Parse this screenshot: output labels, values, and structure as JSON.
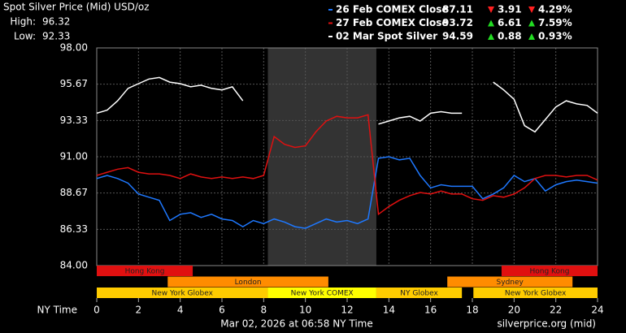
{
  "chart_data": {
    "type": "line",
    "title": "Spot Silver Price (Mid) USD/oz",
    "high_label": "High:",
    "high": 96.32,
    "low_label": "Low:",
    "low": 92.33,
    "xlabel": "NY Time",
    "footer": "Mar 02, 2026 at 06:58 NY Time",
    "source": "silverprice.org (mid)",
    "xlim": [
      0,
      24
    ],
    "xticks": [
      0,
      2,
      4,
      6,
      8,
      10,
      12,
      14,
      16,
      18,
      20,
      22,
      24
    ],
    "ylim": [
      84,
      98
    ],
    "yticks": [
      {
        "value": 84,
        "label": "84.00"
      },
      86.33,
      88.67,
      {
        "value": 91,
        "label": "91.00"
      },
      93.33,
      95.67,
      {
        "value": 98,
        "label": "98.00"
      }
    ],
    "grid": true,
    "shade": [
      8.2,
      13.4
    ],
    "sessions": [
      {
        "label": "Hong Kong",
        "start": 0,
        "end": 4.6,
        "row": 0,
        "color": "#e01010"
      },
      {
        "label": "Hong Kong",
        "start": 19.4,
        "end": 24,
        "row": 0,
        "color": "#e01010"
      },
      {
        "label": "London",
        "start": 3.4,
        "end": 11.1,
        "row": 1,
        "color": "#ff8c00"
      },
      {
        "label": "Sydney",
        "start": 16.8,
        "end": 22.8,
        "row": 1,
        "color": "#ff8c00"
      },
      {
        "label": "New York Globex",
        "start": 0,
        "end": 8.2,
        "row": 2,
        "color": "#ffcc00"
      },
      {
        "label": "New York COMEX",
        "start": 8.2,
        "end": 13.4,
        "row": 2,
        "color": "#ffff00"
      },
      {
        "label": "NY Globex",
        "start": 13.4,
        "end": 17.5,
        "row": 2,
        "color": "#ffcc00"
      },
      {
        "label": "New York Globex",
        "start": 18.05,
        "end": 24,
        "row": 2,
        "color": "#ffcc00"
      }
    ],
    "x": [
      0,
      0.5,
      1,
      1.5,
      2,
      2.5,
      3,
      3.5,
      4,
      4.5,
      5,
      5.5,
      6,
      6.5,
      7,
      7.5,
      8,
      8.5,
      9,
      9.5,
      10,
      10.5,
      11,
      11.5,
      12,
      12.5,
      13,
      13.5,
      14,
      14.5,
      15,
      15.5,
      16,
      16.5,
      17,
      17.5,
      18,
      18.5,
      19,
      19.5,
      20,
      20.5,
      21,
      21.5,
      22,
      22.5,
      23,
      23.5,
      24
    ],
    "series": [
      {
        "name": "26 Feb COMEX Close",
        "color": "#1e78ff",
        "close": "87.11",
        "change": "3.91",
        "change_pct": "4.29%",
        "trend": "down",
        "values": [
          89.6,
          89.8,
          89.6,
          89.3,
          88.6,
          88.4,
          88.2,
          86.9,
          87.3,
          87.4,
          87.1,
          87.3,
          87.0,
          86.9,
          86.5,
          86.9,
          86.7,
          87.0,
          86.8,
          86.5,
          86.4,
          86.7,
          87.0,
          86.8,
          86.9,
          86.7,
          87.0,
          90.9,
          91.0,
          90.8,
          90.9,
          89.8,
          89.0,
          89.2,
          89.1,
          89.1,
          89.1,
          88.3,
          88.6,
          89.0,
          89.8,
          89.4,
          89.6,
          88.8,
          89.2,
          89.4,
          89.5,
          89.4,
          89.3
        ]
      },
      {
        "name": "27 Feb COMEX Close",
        "color": "#e01010",
        "close": "93.72",
        "change": "6.61",
        "change_pct": "7.59%",
        "trend": "up",
        "values": [
          89.8,
          90.0,
          90.2,
          90.3,
          90.0,
          89.9,
          89.9,
          89.8,
          89.6,
          89.9,
          89.7,
          89.6,
          89.7,
          89.6,
          89.7,
          89.6,
          89.8,
          92.3,
          91.8,
          91.6,
          91.7,
          92.6,
          93.3,
          93.6,
          93.5,
          93.5,
          93.7,
          87.3,
          87.8,
          88.2,
          88.5,
          88.7,
          88.6,
          88.8,
          88.6,
          88.6,
          88.3,
          88.2,
          88.5,
          88.4,
          88.6,
          89.0,
          89.6,
          89.8,
          89.8,
          89.7,
          89.8,
          89.8,
          89.5
        ]
      },
      {
        "name": "02 Mar Spot Silver",
        "color": "#ffffff",
        "close": "94.59",
        "change": "0.88",
        "change_pct": "0.93%",
        "trend": "up",
        "values": [
          93.8,
          94.0,
          94.6,
          95.4,
          95.7,
          96.0,
          96.1,
          95.8,
          95.7,
          95.5,
          95.6,
          95.4,
          95.3,
          95.5,
          94.6,
          null,
          null,
          null,
          null,
          null,
          null,
          null,
          null,
          null,
          null,
          null,
          null,
          93.1,
          93.3,
          93.5,
          93.6,
          93.3,
          93.8,
          93.9,
          93.8,
          93.8,
          null,
          null,
          95.8,
          95.3,
          94.7,
          93.0,
          92.6,
          93.4,
          94.2,
          94.6,
          94.4,
          94.3,
          93.8
        ]
      }
    ]
  }
}
